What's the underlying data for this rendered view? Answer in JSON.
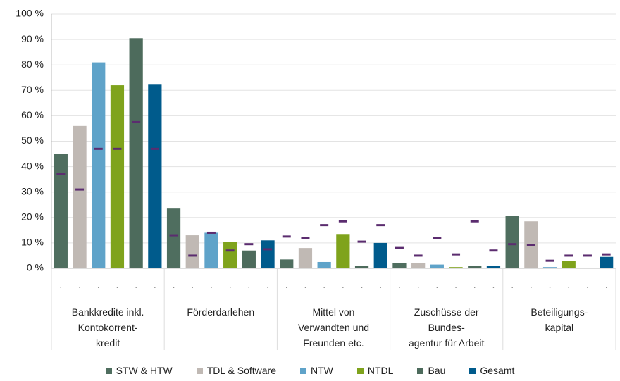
{
  "chart_data": {
    "type": "bar",
    "categories": [
      "Bankkredite inkl.\nKontokorrent-\nkredit",
      "Förderdarlehen",
      "Mittel von\nVerwandten und\nFreunden etc.",
      "Zuschüsse der\nBundes-\nagentur für Arbeit",
      "Beteiligungs-\nkapital"
    ],
    "series": [
      {
        "name": "STW & HTW",
        "color": "#4f6e5f",
        "values": [
          45,
          23.5,
          3.5,
          2,
          20.5
        ],
        "marker_values": [
          37,
          13,
          12.5,
          8,
          9.5
        ],
        "bar_labels": [
          ".",
          ".",
          ".",
          ".",
          "."
        ]
      },
      {
        "name": "TDL & Software",
        "color": "#c0b9b4",
        "values": [
          56,
          13,
          8,
          2,
          18.5
        ],
        "marker_values": [
          31,
          5,
          12,
          5,
          9
        ],
        "bar_labels": [
          ".",
          ".",
          ".",
          ".",
          "."
        ]
      },
      {
        "name": "NTW",
        "color": "#5fa3c9",
        "values": [
          81,
          14,
          2.5,
          1.5,
          0.5
        ],
        "marker_values": [
          47,
          14,
          17,
          12,
          3
        ],
        "bar_labels": [
          ".",
          ".",
          ".",
          ".",
          "."
        ]
      },
      {
        "name": "NTDL",
        "color": "#7fa31c",
        "values": [
          72,
          10.5,
          13.5,
          0.5,
          3
        ],
        "marker_values": [
          47,
          7,
          18.5,
          5.5,
          5
        ],
        "bar_labels": [
          ".",
          ".",
          ".",
          ".",
          "."
        ]
      },
      {
        "name": "Bau",
        "color": "#4d6b5c",
        "values": [
          90.5,
          7,
          1,
          1,
          0
        ],
        "marker_values": [
          57.5,
          9.5,
          10.5,
          18.5,
          5
        ],
        "bar_labels": [
          ".",
          ".",
          ".",
          ".",
          "."
        ]
      },
      {
        "name": "Gesamt",
        "color": "#005b8c",
        "values": [
          72.5,
          11,
          10,
          1,
          4.5
        ],
        "marker_values": [
          47,
          7.5,
          17,
          7,
          5.5
        ],
        "bar_labels": [
          ".",
          ".",
          ".",
          ".",
          "."
        ]
      }
    ],
    "marker_color": "#5b2c6f",
    "ylim": [
      0,
      100
    ],
    "yticks": [
      {
        "value": 0,
        "label": "0 %"
      },
      {
        "value": 10,
        "label": "10 %"
      },
      {
        "value": 20,
        "label": "20 %"
      },
      {
        "value": 30,
        "label": "30 %"
      },
      {
        "value": 40,
        "label": "40 %"
      },
      {
        "value": 50,
        "label": "50 %"
      },
      {
        "value": 60,
        "label": "60 %"
      },
      {
        "value": 70,
        "label": "70 %"
      },
      {
        "value": 80,
        "label": "80 %"
      },
      {
        "value": 90,
        "label": "90 %"
      },
      {
        "value": 100,
        "label": "100 %"
      }
    ],
    "grid": true
  }
}
